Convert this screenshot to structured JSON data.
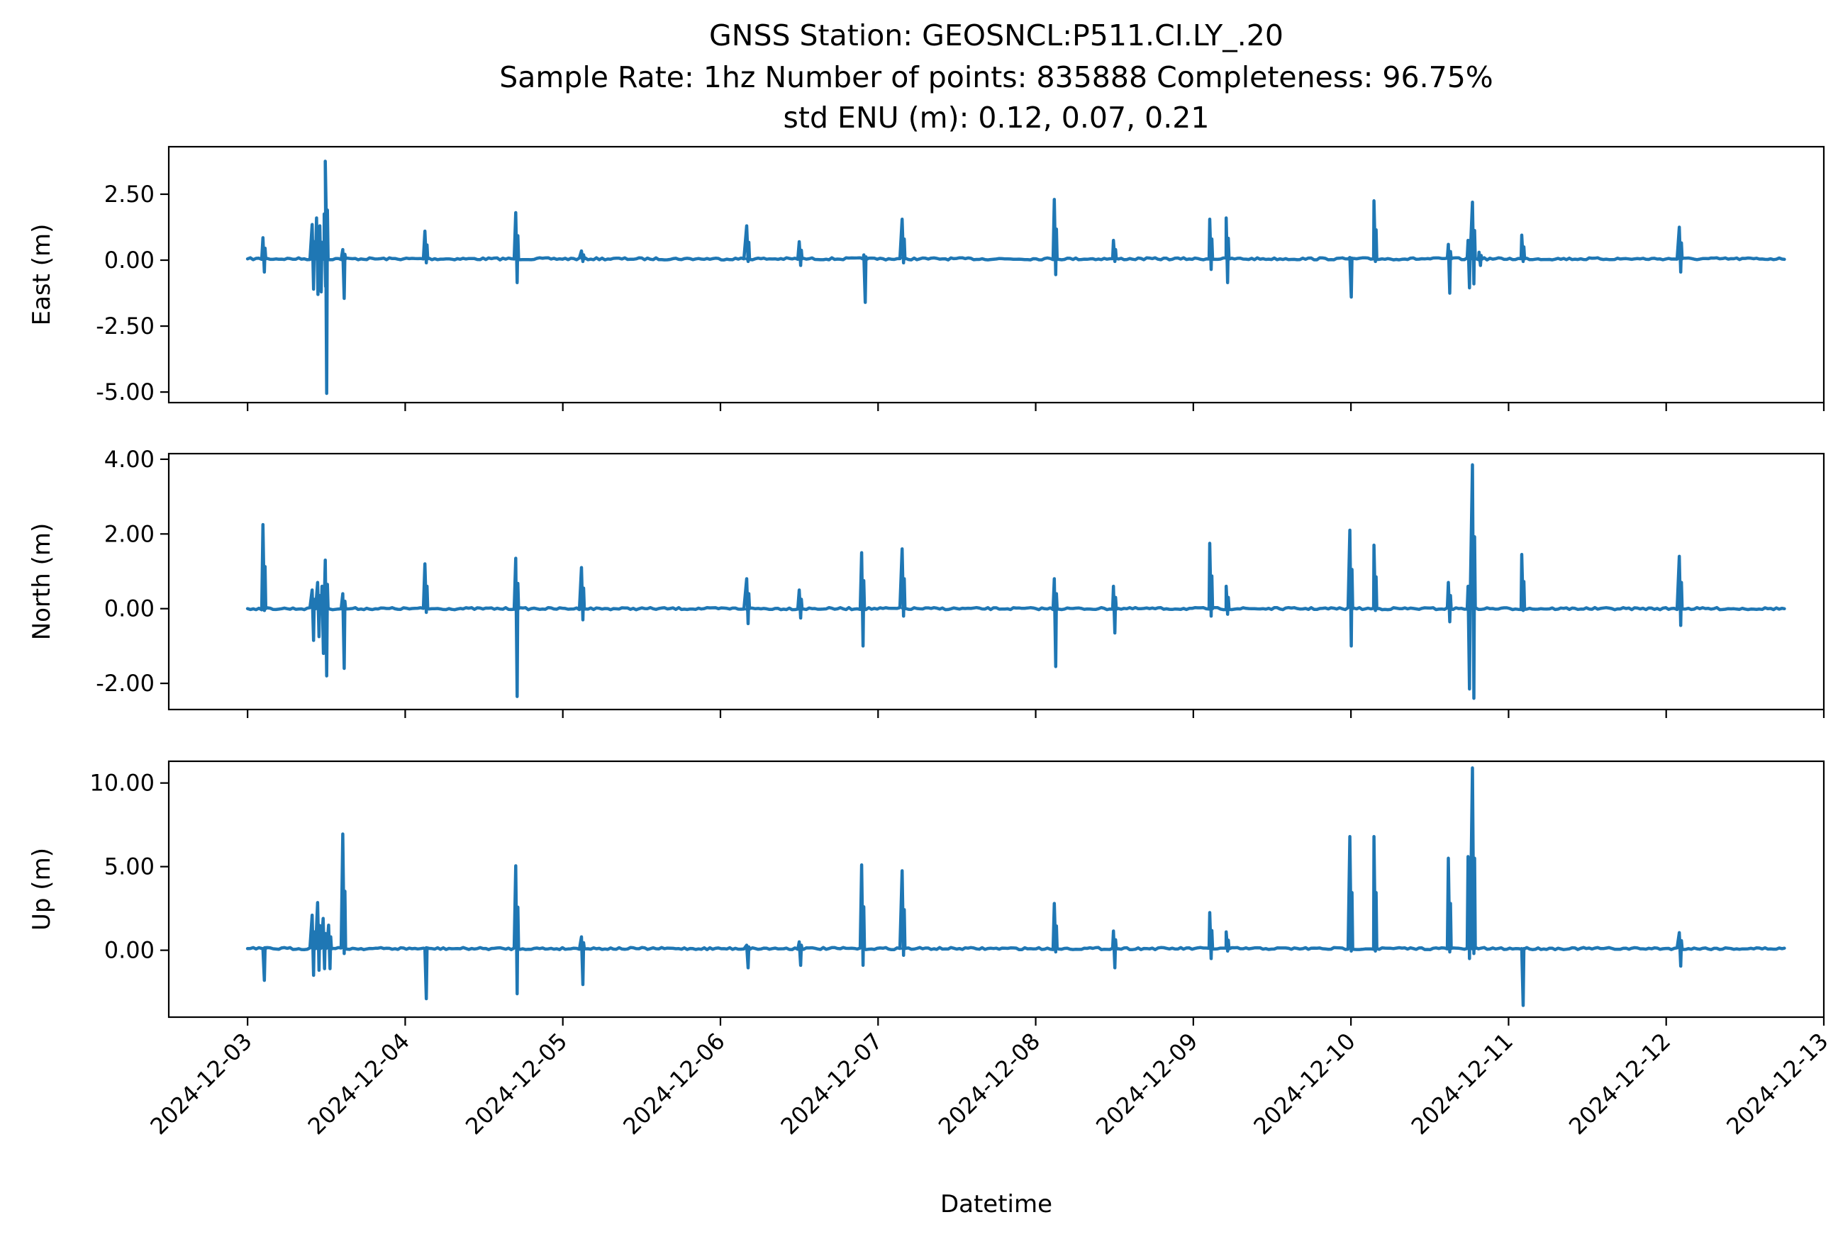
{
  "chart_data": {
    "type": "line",
    "title": [
      "GNSS Station: GEOSNCL:P511.CI.LY_.20",
      "Sample Rate: 1hz   Number of points: 835888    Completeness:  96.75%",
      "std ENU (m):  0.12, 0.07, 0.21"
    ],
    "xlabel": "Datetime",
    "x_range": [
      "2024-12-02T12:00",
      "2024-12-13T00:00"
    ],
    "x_ticks": [
      "2024-12-03",
      "2024-12-04",
      "2024-12-05",
      "2024-12-06",
      "2024-12-07",
      "2024-12-08",
      "2024-12-09",
      "2024-12-10",
      "2024-12-11",
      "2024-12-12",
      "2024-12-13"
    ],
    "color": "#1f77b4",
    "x_start": "2024-12-03T00:00",
    "x_end": "2024-12-12T18:00",
    "panels": [
      {
        "ylabel": "East (m)",
        "ylim": [
          -5.4,
          4.3
        ],
        "yticks": [
          2.5,
          0.0,
          -2.5,
          -5.0
        ],
        "ytick_labels": [
          "2.50",
          "0.00",
          "-2.50",
          "-5.00"
        ],
        "baseline": 0.05,
        "events": [
          {
            "t": "2024-12-03T02:20",
            "max": 0.85,
            "min": -0.45
          },
          {
            "t": "2024-12-03T09:50",
            "max": 1.35,
            "min": -1.1
          },
          {
            "t": "2024-12-03T10:30",
            "max": 1.6,
            "min": -1.3
          },
          {
            "t": "2024-12-03T11:00",
            "max": 1.3,
            "min": -1.2
          },
          {
            "t": "2024-12-03T11:40",
            "max": 1.75,
            "min": -1.0
          },
          {
            "t": "2024-12-03T11:50",
            "max": 3.75,
            "min": -5.05
          },
          {
            "t": "2024-12-03T14:30",
            "max": 0.4,
            "min": -1.45
          },
          {
            "t": "2024-12-04T03:00",
            "max": 1.1,
            "min": -0.1
          },
          {
            "t": "2024-12-04T16:50",
            "max": 1.8,
            "min": -0.85
          },
          {
            "t": "2024-12-05T02:50",
            "max": 0.35,
            "min": -0.05
          },
          {
            "t": "2024-12-06T04:00",
            "max": 1.3,
            "min": -0.05
          },
          {
            "t": "2024-12-06T12:00",
            "max": 0.7,
            "min": -0.2
          },
          {
            "t": "2024-12-06T21:50",
            "max": 0.2,
            "min": -1.6
          },
          {
            "t": "2024-12-07T03:40",
            "max": 1.55,
            "min": -0.1
          },
          {
            "t": "2024-12-08T02:50",
            "max": 2.3,
            "min": -0.55
          },
          {
            "t": "2024-12-08T11:50",
            "max": 0.75,
            "min": -0.05
          },
          {
            "t": "2024-12-09T02:30",
            "max": 1.55,
            "min": -0.35
          },
          {
            "t": "2024-12-09T05:00",
            "max": 1.6,
            "min": -0.85
          },
          {
            "t": "2024-12-09T23:50",
            "max": 0.1,
            "min": -1.4
          },
          {
            "t": "2024-12-10T03:30",
            "max": 2.25,
            "min": -0.05
          },
          {
            "t": "2024-12-10T14:50",
            "max": 0.6,
            "min": -1.25
          },
          {
            "t": "2024-12-10T17:50",
            "max": 0.75,
            "min": -1.05
          },
          {
            "t": "2024-12-10T18:30",
            "max": 2.2,
            "min": -0.9
          },
          {
            "t": "2024-12-10T19:30",
            "max": 0.3,
            "min": -0.2
          },
          {
            "t": "2024-12-11T02:00",
            "max": 0.95,
            "min": -0.05
          },
          {
            "t": "2024-12-12T02:00",
            "max": 1.25,
            "min": -0.45
          }
        ]
      },
      {
        "ylabel": "North (m)",
        "ylim": [
          -2.7,
          4.15
        ],
        "yticks": [
          4.0,
          2.0,
          0.0,
          -2.0
        ],
        "ytick_labels": [
          "4.00",
          "2.00",
          "0.00",
          "-2.00"
        ],
        "baseline": 0.0,
        "events": [
          {
            "t": "2024-12-03T02:20",
            "max": 2.25,
            "min": -0.05
          },
          {
            "t": "2024-12-03T09:50",
            "max": 0.5,
            "min": -0.85
          },
          {
            "t": "2024-12-03T10:40",
            "max": 0.7,
            "min": -0.75
          },
          {
            "t": "2024-12-03T11:20",
            "max": 0.6,
            "min": -1.2
          },
          {
            "t": "2024-12-03T11:50",
            "max": 1.3,
            "min": -1.8
          },
          {
            "t": "2024-12-03T14:30",
            "max": 0.4,
            "min": -1.6
          },
          {
            "t": "2024-12-04T03:00",
            "max": 1.2,
            "min": -0.1
          },
          {
            "t": "2024-12-04T16:50",
            "max": 1.35,
            "min": -2.35
          },
          {
            "t": "2024-12-05T02:50",
            "max": 1.1,
            "min": -0.3
          },
          {
            "t": "2024-12-06T04:00",
            "max": 0.8,
            "min": -0.4
          },
          {
            "t": "2024-12-06T12:00",
            "max": 0.5,
            "min": -0.25
          },
          {
            "t": "2024-12-06T21:30",
            "max": 1.5,
            "min": -1.0
          },
          {
            "t": "2024-12-07T03:40",
            "max": 1.6,
            "min": -0.2
          },
          {
            "t": "2024-12-08T02:50",
            "max": 0.8,
            "min": -1.55
          },
          {
            "t": "2024-12-08T11:50",
            "max": 0.6,
            "min": -0.65
          },
          {
            "t": "2024-12-09T02:30",
            "max": 1.75,
            "min": -0.2
          },
          {
            "t": "2024-12-09T05:00",
            "max": 0.6,
            "min": -0.15
          },
          {
            "t": "2024-12-09T23:50",
            "max": 2.1,
            "min": -1.0
          },
          {
            "t": "2024-12-10T03:30",
            "max": 1.7,
            "min": -0.05
          },
          {
            "t": "2024-12-10T14:50",
            "max": 0.7,
            "min": -0.35
          },
          {
            "t": "2024-12-10T17:50",
            "max": 0.6,
            "min": -2.15
          },
          {
            "t": "2024-12-10T18:30",
            "max": 3.85,
            "min": -2.4
          },
          {
            "t": "2024-12-11T02:00",
            "max": 1.45,
            "min": -0.05
          },
          {
            "t": "2024-12-12T02:00",
            "max": 1.4,
            "min": -0.45
          }
        ]
      },
      {
        "ylabel": "Up (m)",
        "ylim": [
          -4.0,
          11.3
        ],
        "yticks": [
          10.0,
          5.0,
          0.0
        ],
        "ytick_labels": [
          "10.00",
          "5.00",
          "0.00"
        ],
        "baseline": 0.1,
        "events": [
          {
            "t": "2024-12-03T02:20",
            "max": 0.1,
            "min": -1.8
          },
          {
            "t": "2024-12-03T09:50",
            "max": 2.1,
            "min": -1.5
          },
          {
            "t": "2024-12-03T10:40",
            "max": 2.85,
            "min": -1.2
          },
          {
            "t": "2024-12-03T11:30",
            "max": 1.9,
            "min": -1.1
          },
          {
            "t": "2024-12-03T12:20",
            "max": 1.5,
            "min": -1.1
          },
          {
            "t": "2024-12-03T14:30",
            "max": 6.95,
            "min": -0.2
          },
          {
            "t": "2024-12-04T03:00",
            "max": 0.1,
            "min": -2.9
          },
          {
            "t": "2024-12-04T16:50",
            "max": 5.05,
            "min": -2.6
          },
          {
            "t": "2024-12-05T02:50",
            "max": 0.8,
            "min": -2.05
          },
          {
            "t": "2024-12-06T04:00",
            "max": 0.3,
            "min": -1.05
          },
          {
            "t": "2024-12-06T12:00",
            "max": 0.5,
            "min": -0.9
          },
          {
            "t": "2024-12-06T21:30",
            "max": 5.1,
            "min": -0.9
          },
          {
            "t": "2024-12-07T03:40",
            "max": 4.75,
            "min": -0.3
          },
          {
            "t": "2024-12-08T02:50",
            "max": 2.8,
            "min": -0.1
          },
          {
            "t": "2024-12-08T11:50",
            "max": 1.15,
            "min": -1.05
          },
          {
            "t": "2024-12-09T02:30",
            "max": 2.25,
            "min": -0.5
          },
          {
            "t": "2024-12-09T05:00",
            "max": 1.1,
            "min": -0.05
          },
          {
            "t": "2024-12-09T23:50",
            "max": 6.8,
            "min": -0.05
          },
          {
            "t": "2024-12-10T03:30",
            "max": 6.8,
            "min": -0.05
          },
          {
            "t": "2024-12-10T14:50",
            "max": 5.5,
            "min": -0.1
          },
          {
            "t": "2024-12-10T17:50",
            "max": 5.6,
            "min": -0.5
          },
          {
            "t": "2024-12-10T18:30",
            "max": 10.9,
            "min": -0.2
          },
          {
            "t": "2024-12-11T02:00",
            "max": 0.1,
            "min": -3.3
          },
          {
            "t": "2024-12-12T02:00",
            "max": 1.05,
            "min": -0.95
          }
        ]
      }
    ]
  }
}
